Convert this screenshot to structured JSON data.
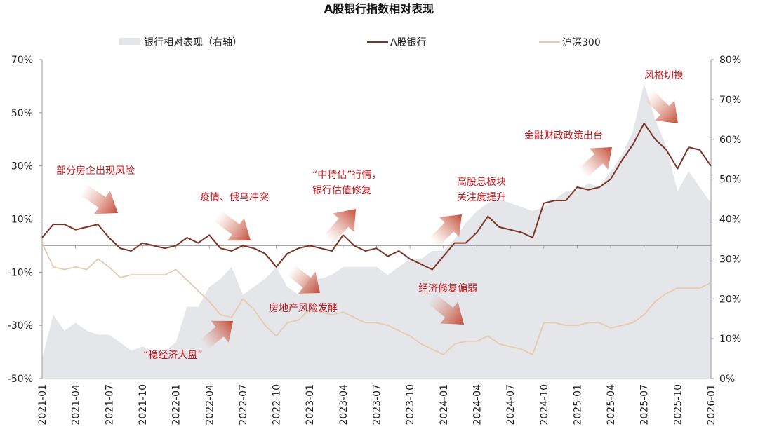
{
  "chart_data": {
    "type": "line",
    "title": "A股银行指数相对表现",
    "legend": [
      "银行相对表现（右轴）",
      "A股银行",
      "沪深300"
    ],
    "legend_placement": "top",
    "x_ticks": [
      "2021-01",
      "2021-04",
      "2021-07",
      "2021-10",
      "2022-01",
      "2022-04",
      "2022-07",
      "2022-10",
      "2023-01",
      "2023-04",
      "2023-07",
      "2023-10",
      "2024-01",
      "2024-04",
      "2024-07",
      "2024-10",
      "2025-01",
      "2025-04",
      "2025-07",
      "2025-10",
      "2026-01"
    ],
    "y_left": {
      "ticks": [
        "70%",
        "50%",
        "30%",
        "10%",
        "-10%",
        "-30%",
        "-50%"
      ],
      "range": [
        -50,
        70
      ]
    },
    "y_right": {
      "ticks": [
        "80%",
        "70%",
        "60%",
        "50%",
        "40%",
        "30%",
        "20%",
        "10%",
        "0%"
      ],
      "range": [
        0,
        80
      ]
    },
    "x_months": 61,
    "series": [
      {
        "name": "A股银行",
        "axis": "left",
        "color": "#7a3426",
        "values": [
          3,
          8,
          8,
          6,
          7,
          8,
          3,
          -1,
          -2,
          1,
          0,
          -1,
          0,
          3,
          1,
          4,
          -1,
          -2,
          0,
          -1,
          -3,
          -8,
          -3,
          -1,
          0,
          -1,
          -2,
          4,
          0,
          -2,
          -1,
          -4,
          -2,
          -5,
          -7,
          -9,
          -4,
          1,
          1,
          5,
          11,
          7,
          6,
          5,
          3,
          16,
          17,
          17,
          22,
          21,
          22,
          25,
          32,
          38,
          46,
          40,
          36,
          29,
          37,
          36,
          30
        ]
      },
      {
        "name": "沪深300",
        "axis": "left",
        "color": "#e3ccae",
        "values": [
          1,
          -8,
          -9,
          -8,
          -9,
          -5,
          -8,
          -12,
          -11,
          -11,
          -11,
          -11,
          -9,
          -13,
          -17,
          -21,
          -26,
          -27,
          -20,
          -24,
          -30,
          -34,
          -29,
          -28,
          -24,
          -25,
          -26,
          -25,
          -27,
          -29,
          -29,
          -30,
          -32,
          -34,
          -37,
          -39,
          -41,
          -37,
          -36,
          -36,
          -34,
          -37,
          -38,
          -39,
          -41,
          -29,
          -29,
          -30,
          -30,
          -29,
          -29,
          -31,
          -30,
          -29,
          -26,
          -21,
          -18,
          -16,
          -16,
          -16,
          -14
        ]
      },
      {
        "name": "银行相对表现（右轴）",
        "axis": "right",
        "type": "area",
        "color": "#e5e6ea",
        "values": [
          5,
          16,
          12,
          14,
          12,
          11,
          11,
          9,
          7,
          8,
          7,
          7,
          9,
          18,
          18,
          23,
          25,
          28,
          21,
          23,
          25,
          28,
          23,
          21,
          25,
          25,
          26,
          28,
          28,
          28,
          28,
          26,
          28,
          30,
          30,
          32,
          32,
          35,
          39,
          42,
          44,
          45,
          44,
          43,
          42,
          43,
          45,
          47,
          47,
          49,
          48,
          52,
          56,
          62,
          74,
          65,
          58,
          47,
          52,
          48,
          44
        ]
      }
    ],
    "annotations": [
      {
        "id": "a1",
        "lines": [
          "部分房企出现风险"
        ],
        "direction": "down"
      },
      {
        "id": "a2",
        "lines": [
          "疫情、俄乌冲突"
        ],
        "direction": "down"
      },
      {
        "id": "a3",
        "lines": [
          "“中特估”行情，",
          "银行估值修复"
        ],
        "direction": "up"
      },
      {
        "id": "a4",
        "lines": [
          "高股息板块",
          "关注度提升"
        ],
        "direction": "up"
      },
      {
        "id": "a5",
        "lines": [
          "金融财政政策出台"
        ],
        "direction": "up"
      },
      {
        "id": "a6",
        "lines": [
          "风格切换"
        ],
        "direction": "down"
      },
      {
        "id": "a7",
        "lines": [
          "房地产风险发酵"
        ],
        "direction": "down"
      },
      {
        "id": "a8",
        "lines": [
          "经济修复偏弱"
        ],
        "direction": "down"
      },
      {
        "id": "a9",
        "lines": [
          "“稳经济大盘”"
        ],
        "direction": "up"
      }
    ]
  }
}
